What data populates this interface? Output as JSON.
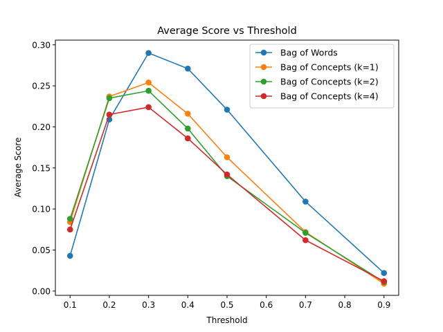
{
  "chart_data": {
    "type": "line",
    "title": "Average Score vs Threshold",
    "xlabel": "Threshold",
    "ylabel": "Average Score",
    "x": [
      0.1,
      0.2,
      0.3,
      0.4,
      0.5,
      0.7,
      0.9
    ],
    "xlim": [
      0.0625,
      0.9375
    ],
    "ylim": [
      -0.0052,
      0.3057
    ],
    "xticks": [
      "0.1",
      "0.2",
      "0.3",
      "0.4",
      "0.5",
      "0.6",
      "0.7",
      "0.8",
      "0.9"
    ],
    "xtick_values": [
      0.1,
      0.2,
      0.3,
      0.4,
      0.5,
      0.6,
      0.7,
      0.8,
      0.9
    ],
    "yticks": [
      "0.00",
      "0.05",
      "0.10",
      "0.15",
      "0.20",
      "0.25",
      "0.30"
    ],
    "ytick_values": [
      0.0,
      0.05,
      0.1,
      0.15,
      0.2,
      0.25,
      0.3
    ],
    "grid": false,
    "legend_position": "top-right",
    "series": [
      {
        "name": "Bag of Words",
        "color": "#1f77b4",
        "values": [
          0.043,
          0.209,
          0.29,
          0.271,
          0.221,
          0.109,
          0.022
        ]
      },
      {
        "name": "Bag of Concepts (k=1)",
        "color": "#ff7f0e",
        "values": [
          0.084,
          0.237,
          0.254,
          0.216,
          0.163,
          0.072,
          0.009
        ]
      },
      {
        "name": "Bag of Concepts (k=2)",
        "color": "#2ca02c",
        "values": [
          0.088,
          0.235,
          0.244,
          0.198,
          0.14,
          0.071,
          0.011
        ]
      },
      {
        "name": "Bag of Concepts (k=4)",
        "color": "#d62728",
        "values": [
          0.075,
          0.215,
          0.224,
          0.186,
          0.142,
          0.062,
          0.012
        ]
      }
    ]
  }
}
